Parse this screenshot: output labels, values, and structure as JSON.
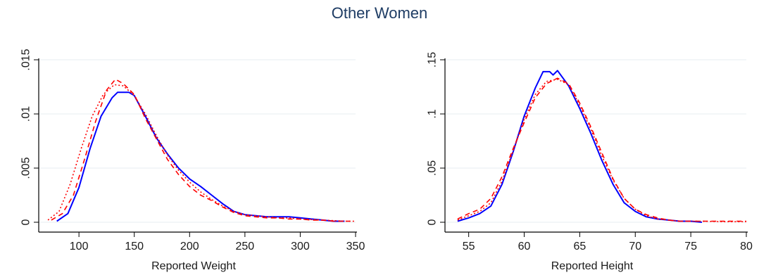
{
  "figure_title": "Other Women",
  "colors": {
    "series_a": "#0000ff",
    "series_b": "#ff0000",
    "grid": "#e7eef2",
    "axis": "#000000"
  },
  "chart_data": [
    {
      "type": "line",
      "xlabel": "Reported Weight",
      "ylabel": "",
      "xlim": [
        70,
        350
      ],
      "ylim": [
        0,
        0.015
      ],
      "xticks": [
        100,
        150,
        200,
        250,
        300,
        350
      ],
      "yticks": [
        0,
        0.005,
        0.01,
        0.015
      ],
      "xtick_labels": [
        "100",
        "150",
        "200",
        "250",
        "300",
        "350"
      ],
      "ytick_labels": [
        "0",
        ".005",
        ".01",
        ".015"
      ],
      "grid": true,
      "series": [
        {
          "style": "solid",
          "color": "#0000ff",
          "points": [
            [
              80,
              0.0001
            ],
            [
              90,
              0.0008
            ],
            [
              100,
              0.0032
            ],
            [
              110,
              0.0068
            ],
            [
              120,
              0.0098
            ],
            [
              130,
              0.0115
            ],
            [
              135,
              0.012
            ],
            [
              145,
              0.012
            ],
            [
              150,
              0.0117
            ],
            [
              160,
              0.0098
            ],
            [
              170,
              0.0078
            ],
            [
              180,
              0.0063
            ],
            [
              190,
              0.005
            ],
            [
              200,
              0.004
            ],
            [
              210,
              0.0033
            ],
            [
              220,
              0.0025
            ],
            [
              230,
              0.0017
            ],
            [
              240,
              0.001
            ],
            [
              250,
              0.0007
            ],
            [
              260,
              0.0006
            ],
            [
              270,
              0.0005
            ],
            [
              280,
              0.0005
            ],
            [
              290,
              0.0005
            ],
            [
              300,
              0.0004
            ],
            [
              310,
              0.0003
            ],
            [
              320,
              0.0002
            ],
            [
              330,
              0.0001
            ],
            [
              340,
              0.0001
            ]
          ]
        },
        {
          "style": "dashed",
          "color": "#ff0000",
          "points": [
            [
              75,
              0.0002
            ],
            [
              85,
              0.0008
            ],
            [
              95,
              0.0025
            ],
            [
              105,
              0.0058
            ],
            [
              115,
              0.0093
            ],
            [
              125,
              0.0122
            ],
            [
              133,
              0.0132
            ],
            [
              140,
              0.0128
            ],
            [
              150,
              0.0118
            ],
            [
              160,
              0.0096
            ],
            [
              170,
              0.0077
            ],
            [
              180,
              0.0058
            ],
            [
              190,
              0.0044
            ],
            [
              200,
              0.0033
            ],
            [
              210,
              0.0025
            ],
            [
              220,
              0.002
            ],
            [
              230,
              0.0014
            ],
            [
              240,
              0.0009
            ],
            [
              250,
              0.0006
            ],
            [
              260,
              0.0005
            ],
            [
              270,
              0.0004
            ],
            [
              280,
              0.0004
            ],
            [
              290,
              0.0003
            ],
            [
              300,
              0.0003
            ],
            [
              310,
              0.0002
            ],
            [
              320,
              0.0002
            ],
            [
              330,
              0.0001
            ],
            [
              345,
              0.0001
            ]
          ]
        },
        {
          "style": "dotted",
          "color": "#ff0000",
          "points": [
            [
              72,
              0.0002
            ],
            [
              82,
              0.001
            ],
            [
              92,
              0.0035
            ],
            [
              102,
              0.0068
            ],
            [
              112,
              0.0098
            ],
            [
              122,
              0.0118
            ],
            [
              132,
              0.0127
            ],
            [
              140,
              0.0126
            ],
            [
              150,
              0.0117
            ],
            [
              160,
              0.01
            ],
            [
              170,
              0.008
            ],
            [
              180,
              0.0062
            ],
            [
              190,
              0.0048
            ],
            [
              200,
              0.0037
            ],
            [
              210,
              0.0028
            ],
            [
              220,
              0.0021
            ],
            [
              230,
              0.0015
            ],
            [
              240,
              0.001
            ],
            [
              250,
              0.0007
            ],
            [
              260,
              0.0006
            ],
            [
              270,
              0.0005
            ],
            [
              280,
              0.0004
            ],
            [
              290,
              0.0004
            ],
            [
              300,
              0.0003
            ],
            [
              320,
              0.0002
            ],
            [
              340,
              0.0001
            ],
            [
              350,
              0.0001
            ]
          ]
        }
      ]
    },
    {
      "type": "line",
      "xlabel": "Reported Height",
      "ylabel": "",
      "xlim": [
        53.5,
        80
      ],
      "ylim": [
        0,
        0.15
      ],
      "xticks": [
        55,
        60,
        65,
        70,
        75,
        80
      ],
      "yticks": [
        0,
        0.05,
        0.1,
        0.15
      ],
      "xtick_labels": [
        "55",
        "60",
        "65",
        "70",
        "75",
        "80"
      ],
      "ytick_labels": [
        "0",
        ".05",
        ".1",
        ".15"
      ],
      "grid": true,
      "series": [
        {
          "style": "solid",
          "color": "#0000ff",
          "points": [
            [
              54,
              0.001
            ],
            [
              55,
              0.004
            ],
            [
              56,
              0.008
            ],
            [
              57,
              0.015
            ],
            [
              58,
              0.035
            ],
            [
              59,
              0.065
            ],
            [
              60,
              0.098
            ],
            [
              61,
              0.124
            ],
            [
              61.7,
              0.139
            ],
            [
              62.3,
              0.139
            ],
            [
              62.6,
              0.136
            ],
            [
              63,
              0.14
            ],
            [
              63.5,
              0.133
            ],
            [
              64,
              0.126
            ],
            [
              65,
              0.105
            ],
            [
              66,
              0.082
            ],
            [
              67,
              0.057
            ],
            [
              68,
              0.035
            ],
            [
              69,
              0.018
            ],
            [
              70,
              0.01
            ],
            [
              71,
              0.005
            ],
            [
              72,
              0.003
            ],
            [
              73,
              0.002
            ],
            [
              74,
              0.001
            ],
            [
              75,
              0.001
            ],
            [
              76,
              0.0
            ]
          ]
        },
        {
          "style": "dashed",
          "color": "#ff0000",
          "points": [
            [
              54,
              0.003
            ],
            [
              55,
              0.008
            ],
            [
              56,
              0.012
            ],
            [
              57,
              0.022
            ],
            [
              58,
              0.042
            ],
            [
              59,
              0.068
            ],
            [
              60,
              0.092
            ],
            [
              61,
              0.115
            ],
            [
              62,
              0.128
            ],
            [
              63,
              0.133
            ],
            [
              64,
              0.128
            ],
            [
              65,
              0.11
            ],
            [
              66,
              0.088
            ],
            [
              67,
              0.064
            ],
            [
              68,
              0.04
            ],
            [
              69,
              0.022
            ],
            [
              70,
              0.012
            ],
            [
              71,
              0.007
            ],
            [
              72,
              0.004
            ],
            [
              73,
              0.002
            ],
            [
              74,
              0.001
            ],
            [
              75,
              0.001
            ],
            [
              76,
              0.001
            ],
            [
              78,
              0.001
            ],
            [
              80,
              0.001
            ]
          ]
        },
        {
          "style": "dotted",
          "color": "#ff0000",
          "points": [
            [
              54,
              0.002
            ],
            [
              55,
              0.006
            ],
            [
              56,
              0.01
            ],
            [
              57,
              0.018
            ],
            [
              58,
              0.038
            ],
            [
              59,
              0.066
            ],
            [
              60,
              0.095
            ],
            [
              61,
              0.118
            ],
            [
              62,
              0.13
            ],
            [
              63,
              0.132
            ],
            [
              64,
              0.127
            ],
            [
              65,
              0.108
            ],
            [
              66,
              0.086
            ],
            [
              67,
              0.061
            ],
            [
              68,
              0.039
            ],
            [
              69,
              0.022
            ],
            [
              70,
              0.012
            ],
            [
              71,
              0.006
            ],
            [
              72,
              0.003
            ],
            [
              73,
              0.002
            ],
            [
              74,
              0.001
            ],
            [
              76,
              0.001
            ],
            [
              78,
              0.0005
            ],
            [
              80,
              0.0005
            ]
          ]
        }
      ]
    }
  ]
}
